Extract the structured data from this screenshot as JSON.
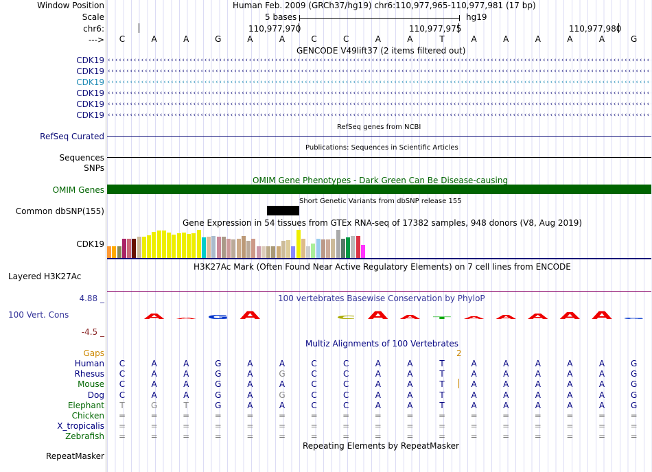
{
  "header": {
    "window_position_label": "Window Position",
    "scale_label": "Scale",
    "chr_label": "chr6:",
    "arrow_label": "--->",
    "assembly_position": "Human Feb. 2009 (GRCh37/hg19)   chr6:110,977,965-110,977,981 (17 bp)",
    "scale_text": "5 bases",
    "db": "hg19",
    "coords": [
      "110,977,970",
      "110,977,975",
      "110,977,980"
    ]
  },
  "reference_bases": [
    "C",
    "A",
    "A",
    "G",
    "A",
    "A",
    "C",
    "C",
    "A",
    "A",
    "T",
    "A",
    "A",
    "A",
    "A",
    "A",
    "G"
  ],
  "gencode": {
    "title": "GENCODE V49lift37 (2 items filtered out)",
    "items": [
      {
        "label": "CDK19",
        "color": "#0c0c78"
      },
      {
        "label": "CDK19",
        "color": "#0c0c78"
      },
      {
        "label": "CDK19",
        "color": "#1d8ab4"
      },
      {
        "label": "CDK19",
        "color": "#0c0c78"
      },
      {
        "label": "CDK19",
        "color": "#0c0c78"
      },
      {
        "label": "CDK19",
        "color": "#0c0c78"
      }
    ]
  },
  "refseq": {
    "title": "RefSeq genes from NCBI",
    "label": "RefSeq Curated"
  },
  "publications": {
    "title": "Publications: Sequences in Scientific Articles",
    "label1": "Sequences",
    "label2": "SNPs"
  },
  "omim": {
    "title": "OMIM Gene Phenotypes - Dark Green Can Be Disease-causing",
    "label": "OMIM Genes",
    "color": "#006400"
  },
  "dbsnp": {
    "title": "Short Genetic Variants from dbSNP release 155",
    "label": "Common dbSNP(155)"
  },
  "gtex": {
    "title": "Gene Expression in 54 tissues from GTEx RNA-seq of 17382 samples, 948 donors (V8, Aug 2019)",
    "label": "CDK19",
    "bars": [
      {
        "v": 0.38,
        "c": "#ff9933"
      },
      {
        "v": 0.38,
        "c": "#ffaa00"
      },
      {
        "v": 0.38,
        "c": "#888855"
      },
      {
        "v": 0.62,
        "c": "#aa2266"
      },
      {
        "v": 0.62,
        "c": "#cc6677"
      },
      {
        "v": 0.62,
        "c": "#661100"
      },
      {
        "v": 0.68,
        "c": "#ccbb99"
      },
      {
        "v": 0.7,
        "c": "#eeee00"
      },
      {
        "v": 0.74,
        "c": "#eeee00"
      },
      {
        "v": 0.85,
        "c": "#eeee00"
      },
      {
        "v": 0.88,
        "c": "#eeee00"
      },
      {
        "v": 0.88,
        "c": "#eeee00"
      },
      {
        "v": 0.82,
        "c": "#eeee00"
      },
      {
        "v": 0.76,
        "c": "#eeee00"
      },
      {
        "v": 0.8,
        "c": "#eeee00"
      },
      {
        "v": 0.82,
        "c": "#eeee00"
      },
      {
        "v": 0.78,
        "c": "#eeee00"
      },
      {
        "v": 0.8,
        "c": "#eeee00"
      },
      {
        "v": 0.92,
        "c": "#eeee00"
      },
      {
        "v": 0.66,
        "c": "#00cccc"
      },
      {
        "v": 0.7,
        "c": "#ddbb99"
      },
      {
        "v": 0.72,
        "c": "#aabbcc"
      },
      {
        "v": 0.7,
        "c": "#cc8899"
      },
      {
        "v": 0.7,
        "c": "#aa9988"
      },
      {
        "v": 0.62,
        "c": "#cc9999"
      },
      {
        "v": 0.6,
        "c": "#bbaa99"
      },
      {
        "v": 0.62,
        "c": "#ccaa88"
      },
      {
        "v": 0.72,
        "c": "#bb9977"
      },
      {
        "v": 0.56,
        "c": "#bbaa99"
      },
      {
        "v": 0.62,
        "c": "#cc9988"
      },
      {
        "v": 0.38,
        "c": "#cc99aa"
      },
      {
        "v": 0.38,
        "c": "#ddccbb"
      },
      {
        "v": 0.38,
        "c": "#bbaa88"
      },
      {
        "v": 0.38,
        "c": "#aa9977"
      },
      {
        "v": 0.38,
        "c": "#ccaa77"
      },
      {
        "v": 0.55,
        "c": "#ccbb99"
      },
      {
        "v": 0.58,
        "c": "#ddcc99"
      },
      {
        "v": 0.38,
        "c": "#8888ff"
      },
      {
        "v": 0.9,
        "c": "#eeee00"
      },
      {
        "v": 0.62,
        "c": "#ddbb88"
      },
      {
        "v": 0.38,
        "c": "#cccccc"
      },
      {
        "v": 0.46,
        "c": "#aaee99"
      },
      {
        "v": 0.62,
        "c": "#99ccee"
      },
      {
        "v": 0.6,
        "c": "#bb9988"
      },
      {
        "v": 0.6,
        "c": "#ccaa99"
      },
      {
        "v": 0.62,
        "c": "#ccbb99"
      },
      {
        "v": 0.92,
        "c": "#aaaaaa"
      },
      {
        "v": 0.62,
        "c": "#557766"
      },
      {
        "v": 0.66,
        "c": "#009944"
      },
      {
        "v": 0.72,
        "c": "#bbbbbb"
      },
      {
        "v": 0.72,
        "c": "#dd3344"
      },
      {
        "v": 0.42,
        "c": "#ff33ff"
      }
    ]
  },
  "h3k27ac": {
    "title": "H3K27Ac Mark (Often Found Near Active Regulatory Elements) on 7 cell lines from ENCODE",
    "label": "Layered H3K27Ac"
  },
  "phylop": {
    "title": "100 vertebrates Basewise Conservation by PhyloP",
    "label": "100 Vert. Cons",
    "max": "4.88 _",
    "min": "-4.5 _"
  },
  "multiz": {
    "title": "Multiz Alignments of 100 Vertebrates",
    "gaps_label": "Gaps",
    "gaps_value": "2",
    "species": [
      {
        "name": "Human",
        "color": "#000080",
        "bases": [
          "C",
          "A",
          "A",
          "G",
          "A",
          "A",
          "C",
          "C",
          "A",
          "A",
          "T",
          "A",
          "A",
          "A",
          "A",
          "A",
          "G"
        ]
      },
      {
        "name": "Rhesus",
        "color": "#000080",
        "bases": [
          "C",
          "A",
          "A",
          "G",
          "A",
          "G",
          "C",
          "C",
          "A",
          "A",
          "T",
          "A",
          "A",
          "A",
          "A",
          "A",
          "G"
        ]
      },
      {
        "name": "Mouse",
        "color": "#006600",
        "bases": [
          "C",
          "A",
          "A",
          "G",
          "A",
          "A",
          "C",
          "C",
          "A",
          "A",
          "T",
          "A",
          "A",
          "A",
          "A",
          "A",
          "G"
        ]
      },
      {
        "name": "Dog",
        "color": "#000080",
        "bases": [
          "C",
          "A",
          "A",
          "G",
          "A",
          "G",
          "C",
          "C",
          "A",
          "A",
          "T",
          "A",
          "A",
          "A",
          "A",
          "A",
          "G"
        ]
      },
      {
        "name": "Elephant",
        "color": "#006600",
        "bases": [
          "T",
          "G",
          "T",
          "G",
          "A",
          "A",
          "C",
          "C",
          "A",
          "A",
          "T",
          "A",
          "A",
          "A",
          "A",
          "A",
          "G"
        ]
      },
      {
        "name": "Chicken",
        "color": "#006600",
        "bases": [
          "=",
          "=",
          "=",
          "=",
          "=",
          "=",
          "=",
          "=",
          "=",
          "=",
          "=",
          "=",
          "=",
          "=",
          "=",
          "=",
          "="
        ]
      },
      {
        "name": "X_tropicalis",
        "color": "#000080",
        "bases": [
          "=",
          "=",
          "=",
          "=",
          "=",
          "=",
          "=",
          "=",
          "=",
          "=",
          "=",
          "=",
          "=",
          "=",
          "=",
          "=",
          "="
        ]
      },
      {
        "name": "Zebrafish",
        "color": "#006600",
        "bases": [
          "=",
          "=",
          "=",
          "=",
          "=",
          "=",
          "=",
          "=",
          "=",
          "=",
          "=",
          "=",
          "=",
          "=",
          "=",
          "=",
          "="
        ]
      }
    ]
  },
  "repeatmasker": {
    "title": "Repeating Elements by RepeatMasker",
    "label": "RepeatMasker"
  }
}
